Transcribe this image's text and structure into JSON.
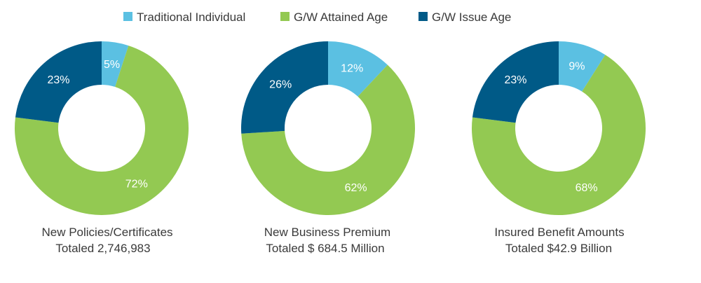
{
  "legend": {
    "placement": "top-center",
    "items": [
      {
        "label": "Traditional Individual",
        "color": "#5bc0e2"
      },
      {
        "label": "G/W Attained Age",
        "color": "#93c952"
      },
      {
        "label": "G/W Issue Age",
        "color": "#005a87"
      }
    ]
  },
  "chart_data": [
    {
      "type": "pie",
      "style": "donut",
      "caption_line1": "New Policies/Certificates",
      "caption_line2": "Totaled 2,746,983",
      "categories": [
        "Traditional Individual",
        "G/W Attained Age",
        "G/W Issue Age"
      ],
      "values": [
        5,
        72,
        23
      ],
      "labels": [
        "5%",
        "72%",
        "23%"
      ],
      "colors": [
        "#5bc0e2",
        "#93c952",
        "#005a87"
      ]
    },
    {
      "type": "pie",
      "style": "donut",
      "caption_line1": "New Business Premium",
      "caption_line2": "Totaled $ 684.5 Million",
      "categories": [
        "Traditional Individual",
        "G/W Attained Age",
        "G/W Issue Age"
      ],
      "values": [
        12,
        62,
        26
      ],
      "labels": [
        "12%",
        "62%",
        "26%"
      ],
      "colors": [
        "#5bc0e2",
        "#93c952",
        "#005a87"
      ]
    },
    {
      "type": "pie",
      "style": "donut",
      "caption_line1": "Insured Benefit Amounts",
      "caption_line2": "Totaled $42.9 Billion",
      "categories": [
        "Traditional Individual",
        "G/W Attained Age",
        "G/W Issue Age"
      ],
      "values": [
        9,
        68,
        23
      ],
      "labels": [
        "9%",
        "68%",
        "23%"
      ],
      "colors": [
        "#5bc0e2",
        "#93c952",
        "#005a87"
      ]
    }
  ]
}
